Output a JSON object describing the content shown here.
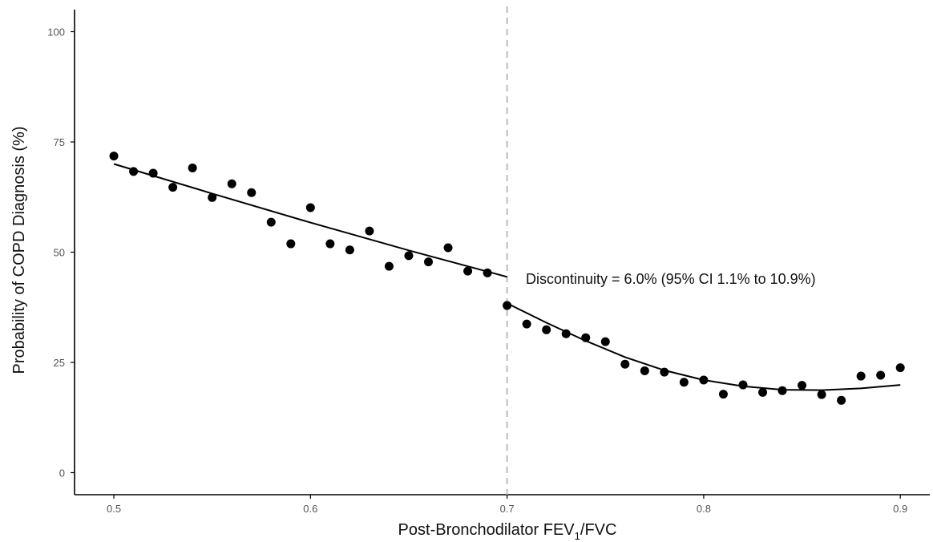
{
  "chart_data": {
    "type": "scatter",
    "xlabel": {
      "main": "Post-Bronchodilator FEV",
      "sub": "1",
      "tail": "/FVC"
    },
    "ylabel": "Probability of COPD Diagnosis (%)",
    "xlim": [
      0.48,
      0.915
    ],
    "ylim": [
      -5,
      105
    ],
    "x_ticks": [
      0.5,
      0.6,
      0.7,
      0.8,
      0.9
    ],
    "x_tick_labels": [
      "0.5",
      "0.6",
      "0.7",
      "0.8",
      "0.9"
    ],
    "y_ticks": [
      0,
      25,
      50,
      75,
      100
    ],
    "y_tick_labels": [
      "0",
      "25",
      "50",
      "75",
      "100"
    ],
    "cutoff": 0.7,
    "annotation": "Discontinuity = 6.0% (95% CI 1.1% to 10.9%)",
    "grid": false,
    "points": {
      "x": [
        0.5,
        0.51,
        0.52,
        0.53,
        0.54,
        0.55,
        0.56,
        0.57,
        0.58,
        0.59,
        0.6,
        0.61,
        0.62,
        0.63,
        0.64,
        0.65,
        0.66,
        0.67,
        0.68,
        0.69,
        0.7,
        0.71,
        0.72,
        0.73,
        0.74,
        0.75,
        0.76,
        0.77,
        0.78,
        0.79,
        0.8,
        0.81,
        0.82,
        0.83,
        0.84,
        0.85,
        0.86,
        0.87,
        0.88,
        0.89,
        0.9
      ],
      "y": [
        71.8,
        68.3,
        67.9,
        64.7,
        69.1,
        62.4,
        65.5,
        63.5,
        56.8,
        51.9,
        60.1,
        51.9,
        50.5,
        54.8,
        46.8,
        49.2,
        47.8,
        51.0,
        45.7,
        45.3,
        37.9,
        33.7,
        32.4,
        31.5,
        30.6,
        29.7,
        24.6,
        23.1,
        22.8,
        20.5,
        21.0,
        17.8,
        19.9,
        18.2,
        18.6,
        19.8,
        17.7,
        16.4,
        21.9,
        22.1,
        23.8
      ]
    },
    "fit_left": {
      "x": [
        0.5,
        0.55,
        0.6,
        0.65,
        0.7
      ],
      "y": [
        70.0,
        63.3,
        56.7,
        50.4,
        44.4
      ]
    },
    "fit_right": {
      "x": [
        0.7,
        0.72,
        0.74,
        0.76,
        0.78,
        0.8,
        0.82,
        0.84,
        0.86,
        0.88,
        0.9
      ],
      "y": [
        38.4,
        34.0,
        29.9,
        26.2,
        23.2,
        21.0,
        19.6,
        18.8,
        18.7,
        19.1,
        19.9
      ]
    },
    "colors": {
      "points": "#000000",
      "fit": "#000000",
      "cutoff_line": "#bbbbbb",
      "axis": "#000000",
      "tick_label": "#555555"
    }
  }
}
